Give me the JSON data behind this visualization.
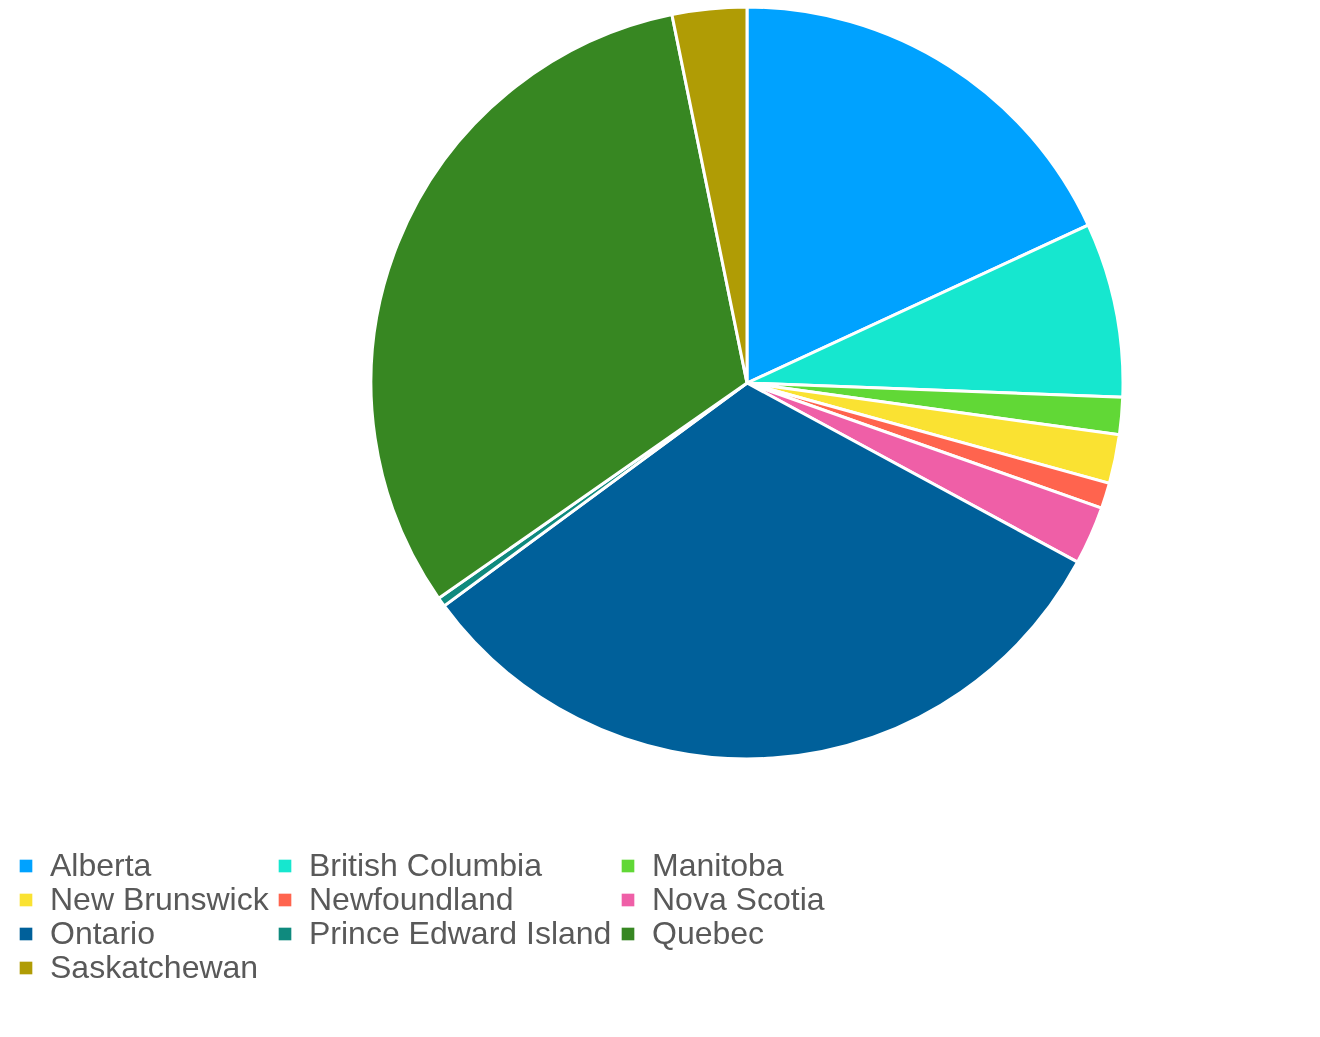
{
  "chart_data": {
    "type": "pie",
    "categories": [
      "Alberta",
      "British Columbia",
      "Manitoba",
      "New Brunswick",
      "Newfoundland",
      "Nova Scotia",
      "Ontario",
      "Prince Edward Island",
      "Quebec",
      "Saskatchewan"
    ],
    "values": [
      18.1,
      7.5,
      1.6,
      2.1,
      1.1,
      2.5,
      32.0,
      0.4,
      31.5,
      3.2
    ],
    "colors": [
      "#00a2ff",
      "#16e7cf",
      "#61d836",
      "#fae232",
      "#ff644e",
      "#ef5fa7",
      "#00609a",
      "#0f8a7e",
      "#378722",
      "#b09c05"
    ],
    "legend": "bottom"
  }
}
